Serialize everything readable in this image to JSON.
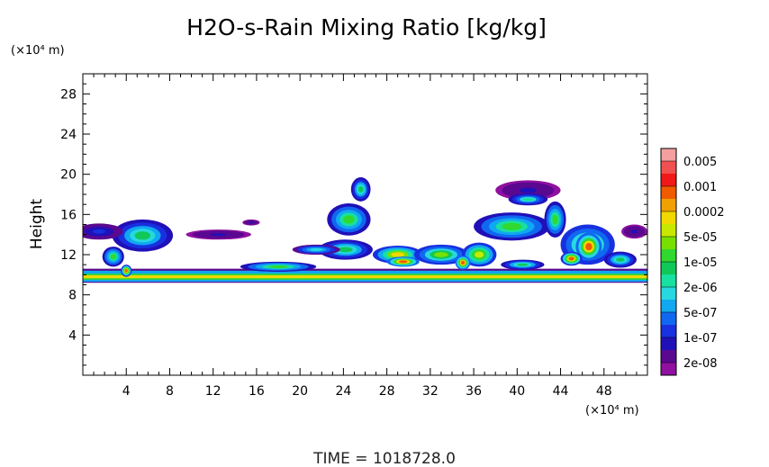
{
  "chart_data": {
    "type": "heatmap",
    "title": "H2O-s-Rain Mixing Ratio [kg/kg]",
    "ylabel": "Height",
    "xlabel": "",
    "x_unit": "(×10⁴ m)",
    "y_unit": "(×10⁴ m)",
    "xlim": [
      0,
      52
    ],
    "ylim": [
      0,
      30
    ],
    "x_ticks": [
      4,
      8,
      12,
      16,
      20,
      24,
      28,
      32,
      36,
      40,
      44,
      48
    ],
    "y_ticks": [
      4,
      8,
      12,
      16,
      20,
      24,
      28
    ],
    "colorbar": {
      "labels": [
        "0.005",
        "0.001",
        "0.0002",
        "5e-05",
        "1e-05",
        "2e-06",
        "5e-07",
        "1e-07",
        "2e-08"
      ],
      "colors": [
        "#f4a0a0",
        "#f05050",
        "#f01818",
        "#f05a00",
        "#f0a000",
        "#f0d800",
        "#c8e800",
        "#78e000",
        "#30d830",
        "#10c858",
        "#18e0a0",
        "#28d8e0",
        "#10a8f0",
        "#1068f0",
        "#1830e0",
        "#2010b8",
        "#5a0890",
        "#9010a0"
      ]
    },
    "layers": [
      {
        "name": "band_blue_edge",
        "x0": 0,
        "x1": 52,
        "y0": 9.2,
        "y1": 10.6,
        "level": 0.06
      },
      {
        "name": "band_green",
        "x0": 0,
        "x1": 52,
        "y0": 9.3,
        "y1": 10.4,
        "level": 0.3
      },
      {
        "name": "band_yellow",
        "x0": 0,
        "x1": 52,
        "y0": 9.5,
        "y1": 10.1,
        "level": 0.55
      },
      {
        "name": "band_orange",
        "x0": 0,
        "x1": 52,
        "y0": 9.65,
        "y1": 9.95,
        "level": 0.7
      }
    ],
    "cells": [
      {
        "x": 5.5,
        "y": 13.9,
        "rx": 2.8,
        "ry": 1.6,
        "level": 0.45
      },
      {
        "x": 1.5,
        "y": 14.3,
        "rx": 2.2,
        "ry": 0.8,
        "level": 0.15
      },
      {
        "x": 2.8,
        "y": 11.8,
        "rx": 1.0,
        "ry": 1.0,
        "level": 0.5
      },
      {
        "x": 4.0,
        "y": 10.4,
        "rx": 0.5,
        "ry": 0.6,
        "level": 0.8
      },
      {
        "x": 12.5,
        "y": 14.0,
        "rx": 3.0,
        "ry": 0.5,
        "level": 0.1
      },
      {
        "x": 15.5,
        "y": 15.2,
        "rx": 0.8,
        "ry": 0.3,
        "level": 0.1
      },
      {
        "x": 18.0,
        "y": 10.8,
        "rx": 3.5,
        "ry": 0.5,
        "level": 0.5
      },
      {
        "x": 24.5,
        "y": 15.5,
        "rx": 2.0,
        "ry": 1.6,
        "level": 0.5
      },
      {
        "x": 25.6,
        "y": 18.5,
        "rx": 0.9,
        "ry": 1.2,
        "level": 0.45
      },
      {
        "x": 24.2,
        "y": 12.5,
        "rx": 2.5,
        "ry": 1.0,
        "level": 0.45
      },
      {
        "x": 21.5,
        "y": 12.5,
        "rx": 2.2,
        "ry": 0.5,
        "level": 0.35
      },
      {
        "x": 29.0,
        "y": 12.0,
        "rx": 2.3,
        "ry": 0.9,
        "level": 0.7
      },
      {
        "x": 29.5,
        "y": 11.3,
        "rx": 1.5,
        "ry": 0.5,
        "level": 0.85
      },
      {
        "x": 33.0,
        "y": 12.0,
        "rx": 2.5,
        "ry": 1.0,
        "level": 0.6
      },
      {
        "x": 36.5,
        "y": 12.0,
        "rx": 1.6,
        "ry": 1.2,
        "level": 0.65
      },
      {
        "x": 35.0,
        "y": 11.2,
        "rx": 0.7,
        "ry": 0.7,
        "level": 0.85
      },
      {
        "x": 39.5,
        "y": 14.8,
        "rx": 3.5,
        "ry": 1.4,
        "level": 0.5
      },
      {
        "x": 41.0,
        "y": 18.4,
        "rx": 3.0,
        "ry": 1.0,
        "level": 0.1
      },
      {
        "x": 41.0,
        "y": 17.5,
        "rx": 1.8,
        "ry": 0.6,
        "level": 0.4
      },
      {
        "x": 40.5,
        "y": 11.0,
        "rx": 2.0,
        "ry": 0.5,
        "level": 0.45
      },
      {
        "x": 43.5,
        "y": 15.5,
        "rx": 1.0,
        "ry": 1.8,
        "level": 0.5
      },
      {
        "x": 46.5,
        "y": 13.0,
        "rx": 2.5,
        "ry": 2.0,
        "level": 0.6
      },
      {
        "x": 46.6,
        "y": 12.8,
        "rx": 1.2,
        "ry": 1.4,
        "level": 0.85
      },
      {
        "x": 45.0,
        "y": 11.6,
        "rx": 1.0,
        "ry": 0.7,
        "level": 0.8
      },
      {
        "x": 49.5,
        "y": 11.5,
        "rx": 1.5,
        "ry": 0.8,
        "level": 0.45
      },
      {
        "x": 50.8,
        "y": 14.3,
        "rx": 1.2,
        "ry": 0.7,
        "level": 0.1
      }
    ]
  },
  "footer": {
    "time_label": "TIME  =  1018728.0"
  }
}
